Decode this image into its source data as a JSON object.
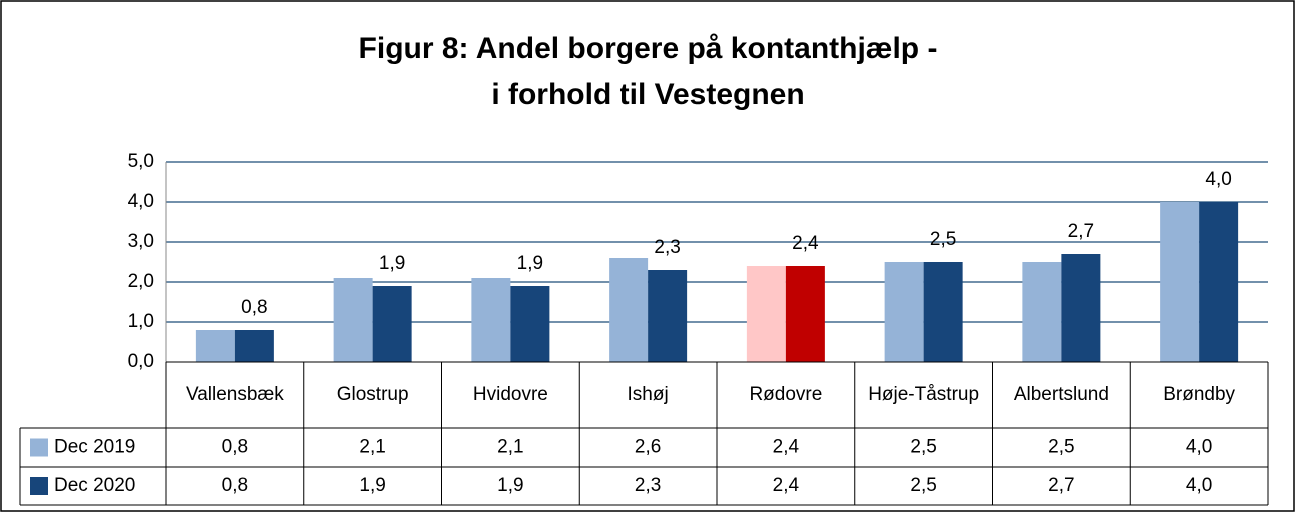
{
  "chart_data": {
    "type": "bar",
    "title": [
      "Figur 8: Andel borgere på kontanthjælp -",
      "i forhold til Vestegnen"
    ],
    "categories": [
      "Vallensbæk",
      "Glostrup",
      "Hvidovre",
      "Ishøj",
      "Rødovre",
      "Høje-Tåstrup",
      "Albertslund",
      "Brøndby"
    ],
    "series": [
      {
        "name": "Dec 2019",
        "color": "#95b3d7",
        "colors": [
          "#95b3d7",
          "#95b3d7",
          "#95b3d7",
          "#95b3d7",
          "#ffc7c7",
          "#95b3d7",
          "#95b3d7",
          "#95b3d7"
        ],
        "values": [
          0.8,
          2.1,
          2.1,
          2.6,
          2.4,
          2.5,
          2.5,
          4.0
        ],
        "value_labels": [
          "0,8",
          "2,1",
          "2,1",
          "2,6",
          "2,4",
          "2,5",
          "2,5",
          "4,0"
        ]
      },
      {
        "name": "Dec 2020",
        "color": "#17457a",
        "colors": [
          "#17457a",
          "#17457a",
          "#17457a",
          "#17457a",
          "#c00000",
          "#17457a",
          "#17457a",
          "#17457a"
        ],
        "values": [
          0.8,
          1.9,
          1.9,
          2.3,
          2.4,
          2.5,
          2.7,
          4.0
        ],
        "value_labels": [
          "0,8",
          "1,9",
          "1,9",
          "2,3",
          "2,4",
          "2,5",
          "2,7",
          "4,0"
        ]
      }
    ],
    "data_labels_series": 1,
    "ylim": [
      0,
      5
    ],
    "yticks": [
      {
        "value": 0,
        "label": "0,0"
      },
      {
        "value": 1,
        "label": "1,0"
      },
      {
        "value": 2,
        "label": "2,0"
      },
      {
        "value": 3,
        "label": "3,0"
      },
      {
        "value": 4,
        "label": "4,0"
      },
      {
        "value": 5,
        "label": "5,0"
      }
    ],
    "grid": true,
    "grid_color": "#1f4e79"
  }
}
